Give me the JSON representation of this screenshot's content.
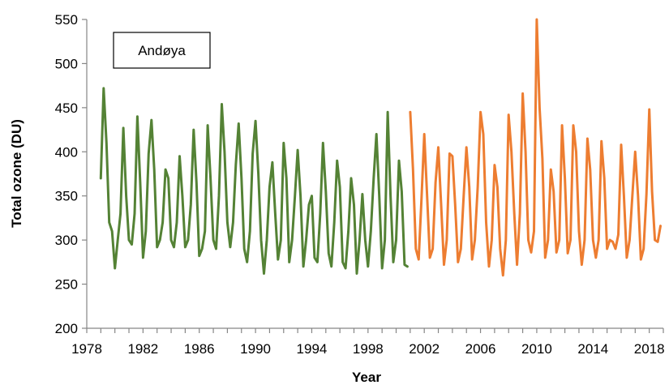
{
  "chart_data": {
    "type": "line",
    "xlabel": "Year",
    "ylabel": "Total ozone (DU)",
    "annotation": "Andøya",
    "xlim": [
      1978,
      2019
    ],
    "ylim": [
      200,
      550
    ],
    "x_ticks": [
      "1978",
      "1982",
      "1986",
      "1990",
      "1994",
      "1998",
      "2002",
      "2006",
      "2010",
      "2014",
      "2018"
    ],
    "y_ticks": [
      "200",
      "250",
      "300",
      "350",
      "400",
      "450",
      "500",
      "550"
    ],
    "grid": false,
    "series": [
      {
        "color": "#548235",
        "x": [
          1979.0,
          1979.2,
          1979.4,
          1979.6,
          1979.8,
          1980.0,
          1980.2,
          1980.4,
          1980.6,
          1980.8,
          1981.0,
          1981.2,
          1981.4,
          1981.6,
          1981.8,
          1982.0,
          1982.2,
          1982.4,
          1982.6,
          1982.8,
          1983.0,
          1983.2,
          1983.4,
          1983.6,
          1983.8,
          1984.0,
          1984.2,
          1984.4,
          1984.6,
          1984.8,
          1985.0,
          1985.2,
          1985.4,
          1985.6,
          1985.8,
          1986.0,
          1986.2,
          1986.4,
          1986.6,
          1986.8,
          1987.0,
          1987.2,
          1987.4,
          1987.6,
          1987.8,
          1988.0,
          1988.2,
          1988.4,
          1988.6,
          1988.8,
          1989.0,
          1989.2,
          1989.4,
          1989.6,
          1989.8,
          1990.0,
          1990.2,
          1990.4,
          1990.6,
          1990.8,
          1991.0,
          1991.2,
          1991.4,
          1991.6,
          1991.8,
          1992.0,
          1992.2,
          1992.4,
          1992.6,
          1992.8,
          1993.0,
          1993.2,
          1993.4,
          1993.6,
          1993.8,
          1994.0,
          1994.2,
          1994.4,
          1994.6,
          1994.8,
          1995.0,
          1995.2,
          1995.4,
          1995.6,
          1995.8,
          1996.0,
          1996.2,
          1996.4,
          1996.6,
          1996.8,
          1997.0,
          1997.2,
          1997.4,
          1997.6,
          1997.8,
          1998.0,
          1998.2,
          1998.4,
          1998.6,
          1998.8,
          1999.0,
          1999.2,
          1999.4,
          1999.6,
          1999.8,
          2000.0,
          2000.2,
          2000.4,
          2000.6,
          2000.8
        ],
        "values": [
          370,
          472,
          410,
          320,
          310,
          268,
          300,
          330,
          427,
          350,
          300,
          295,
          330,
          440,
          365,
          280,
          310,
          398,
          436,
          380,
          292,
          300,
          320,
          380,
          370,
          300,
          292,
          320,
          395,
          350,
          292,
          300,
          340,
          425,
          365,
          282,
          290,
          310,
          430,
          370,
          300,
          290,
          350,
          454,
          400,
          320,
          292,
          320,
          385,
          432,
          370,
          290,
          275,
          310,
          398,
          435,
          375,
          300,
          262,
          300,
          360,
          388,
          330,
          278,
          300,
          410,
          370,
          275,
          300,
          350,
          402,
          350,
          270,
          300,
          340,
          350,
          280,
          275,
          330,
          410,
          355,
          285,
          270,
          320,
          390,
          360,
          275,
          268,
          310,
          370,
          340,
          262,
          300,
          352,
          300,
          270,
          310,
          370,
          420,
          350,
          268,
          300,
          445,
          350,
          275,
          300,
          390,
          355,
          272,
          270
        ]
      },
      {
        "color": "#ED7D31",
        "x": [
          2001.0,
          2001.2,
          2001.4,
          2001.6,
          2001.8,
          2002.0,
          2002.2,
          2002.4,
          2002.6,
          2002.8,
          2003.0,
          2003.2,
          2003.4,
          2003.6,
          2003.8,
          2004.0,
          2004.2,
          2004.4,
          2004.6,
          2004.8,
          2005.0,
          2005.2,
          2005.4,
          2005.6,
          2005.8,
          2006.0,
          2006.2,
          2006.4,
          2006.6,
          2006.8,
          2007.0,
          2007.2,
          2007.4,
          2007.6,
          2007.8,
          2008.0,
          2008.2,
          2008.4,
          2008.6,
          2008.8,
          2009.0,
          2009.2,
          2009.4,
          2009.6,
          2009.8,
          2010.0,
          2010.2,
          2010.4,
          2010.6,
          2010.8,
          2011.0,
          2011.2,
          2011.4,
          2011.6,
          2011.8,
          2012.0,
          2012.2,
          2012.4,
          2012.6,
          2012.8,
          2013.0,
          2013.2,
          2013.4,
          2013.6,
          2013.8,
          2014.0,
          2014.2,
          2014.4,
          2014.6,
          2014.8,
          2015.0,
          2015.2,
          2015.4,
          2015.6,
          2015.8,
          2016.0,
          2016.2,
          2016.4,
          2016.6,
          2016.8,
          2017.0,
          2017.2,
          2017.4,
          2017.6,
          2017.8,
          2018.0,
          2018.2,
          2018.4,
          2018.6,
          2018.8
        ],
        "values": [
          445,
          380,
          290,
          278,
          345,
          420,
          350,
          280,
          290,
          365,
          405,
          340,
          272,
          300,
          398,
          395,
          340,
          275,
          290,
          350,
          405,
          360,
          278,
          300,
          360,
          445,
          420,
          320,
          270,
          300,
          385,
          360,
          290,
          260,
          300,
          442,
          400,
          330,
          272,
          330,
          466,
          400,
          300,
          286,
          310,
          550,
          450,
          392,
          280,
          300,
          380,
          355,
          286,
          300,
          430,
          370,
          285,
          300,
          430,
          400,
          310,
          272,
          300,
          415,
          380,
          300,
          280,
          300,
          412,
          370,
          290,
          300,
          298,
          290,
          306,
          408,
          350,
          280,
          300,
          350,
          400,
          350,
          278,
          290,
          352,
          448,
          355,
          300,
          298,
          316
        ]
      }
    ]
  }
}
